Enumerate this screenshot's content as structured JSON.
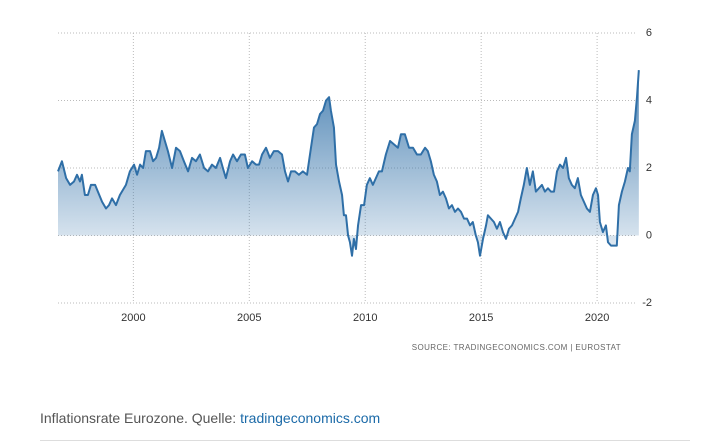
{
  "chart_data": {
    "type": "area",
    "source": "SOURCE: TRADINGECONOMICS.COM | EUROSTAT",
    "xlim": [
      1996.75,
      2021.85
    ],
    "xticks": [
      2000,
      2005,
      2010,
      2015,
      2020
    ],
    "ylim": [
      -2,
      6
    ],
    "yticks": [
      -2,
      0,
      2,
      4,
      6
    ],
    "grid": true,
    "series": [
      {
        "color": "#2f6fa7",
        "x": [
          1996.75,
          1996.92,
          1997.1,
          1997.27,
          1997.44,
          1997.57,
          1997.7,
          1997.78,
          1997.91,
          1998.04,
          1998.17,
          1998.35,
          1998.47,
          1998.65,
          1998.82,
          1998.95,
          1999.08,
          1999.25,
          1999.42,
          1999.68,
          1999.85,
          2000.03,
          2000.16,
          2000.29,
          2000.42,
          2000.54,
          2000.72,
          2000.85,
          2000.98,
          2001.11,
          2001.23,
          2001.36,
          2001.49,
          2001.67,
          2001.84,
          2002.01,
          2002.18,
          2002.36,
          2002.53,
          2002.7,
          2002.87,
          2003.05,
          2003.22,
          2003.39,
          2003.56,
          2003.74,
          2003.86,
          2003.99,
          2004.17,
          2004.3,
          2004.47,
          2004.64,
          2004.81,
          2004.94,
          2005.12,
          2005.29,
          2005.42,
          2005.55,
          2005.72,
          2005.89,
          2006.06,
          2006.24,
          2006.41,
          2006.54,
          2006.67,
          2006.8,
          2006.97,
          2007.14,
          2007.31,
          2007.49,
          2007.66,
          2007.79,
          2007.92,
          2008.05,
          2008.18,
          2008.31,
          2008.44,
          2008.52,
          2008.65,
          2008.74,
          2008.87,
          2009.0,
          2009.08,
          2009.17,
          2009.26,
          2009.34,
          2009.43,
          2009.51,
          2009.6,
          2009.69,
          2009.82,
          2009.95,
          2010.07,
          2010.2,
          2010.33,
          2010.46,
          2010.59,
          2010.72,
          2010.89,
          2011.07,
          2011.24,
          2011.41,
          2011.54,
          2011.71,
          2011.89,
          2012.06,
          2012.23,
          2012.4,
          2012.58,
          2012.7,
          2012.83,
          2012.96,
          2013.09,
          2013.22,
          2013.35,
          2013.48,
          2013.61,
          2013.74,
          2013.87,
          2014.0,
          2014.13,
          2014.26,
          2014.39,
          2014.52,
          2014.64,
          2014.77,
          2014.86,
          2014.95,
          2015.08,
          2015.21,
          2015.29,
          2015.42,
          2015.55,
          2015.68,
          2015.81,
          2015.94,
          2016.07,
          2016.2,
          2016.33,
          2016.46,
          2016.59,
          2016.71,
          2016.84,
          2016.97,
          2017.1,
          2017.23,
          2017.36,
          2017.49,
          2017.62,
          2017.75,
          2017.88,
          2018.01,
          2018.14,
          2018.27,
          2018.4,
          2018.53,
          2018.66,
          2018.78,
          2018.91,
          2019.04,
          2019.17,
          2019.3,
          2019.43,
          2019.56,
          2019.69,
          2019.82,
          2019.95,
          2020.04,
          2020.12,
          2020.25,
          2020.38,
          2020.47,
          2020.6,
          2020.72,
          2020.85,
          2020.94,
          2021.07,
          2021.2,
          2021.33,
          2021.41,
          2021.5,
          2021.63,
          2021.72,
          2021.8
        ],
        "values": [
          1.9,
          2.2,
          1.7,
          1.5,
          1.6,
          1.8,
          1.6,
          1.8,
          1.2,
          1.2,
          1.5,
          1.5,
          1.3,
          1.0,
          0.8,
          0.9,
          1.1,
          0.9,
          1.2,
          1.5,
          1.9,
          2.1,
          1.8,
          2.1,
          2.0,
          2.5,
          2.5,
          2.2,
          2.3,
          2.6,
          3.1,
          2.8,
          2.5,
          2.0,
          2.6,
          2.5,
          2.2,
          1.9,
          2.3,
          2.2,
          2.4,
          2.0,
          1.9,
          2.1,
          2.0,
          2.3,
          2.0,
          1.7,
          2.2,
          2.4,
          2.2,
          2.4,
          2.4,
          2.0,
          2.2,
          2.1,
          2.1,
          2.4,
          2.6,
          2.3,
          2.5,
          2.5,
          2.4,
          1.9,
          1.6,
          1.9,
          1.9,
          1.8,
          1.9,
          1.8,
          2.6,
          3.2,
          3.3,
          3.6,
          3.7,
          4.0,
          4.1,
          3.7,
          3.2,
          2.1,
          1.6,
          1.2,
          0.6,
          0.6,
          0.0,
          -0.2,
          -0.6,
          -0.1,
          -0.4,
          0.3,
          0.9,
          0.9,
          1.5,
          1.7,
          1.5,
          1.7,
          1.9,
          1.9,
          2.4,
          2.8,
          2.7,
          2.6,
          3.0,
          3.0,
          2.6,
          2.6,
          2.4,
          2.4,
          2.6,
          2.5,
          2.2,
          1.8,
          1.6,
          1.2,
          1.3,
          1.1,
          0.8,
          0.9,
          0.7,
          0.8,
          0.7,
          0.5,
          0.5,
          0.3,
          0.4,
          0.0,
          -0.2,
          -0.6,
          -0.1,
          0.3,
          0.6,
          0.5,
          0.4,
          0.2,
          0.4,
          0.1,
          -0.1,
          0.2,
          0.3,
          0.5,
          0.7,
          1.1,
          1.5,
          2.0,
          1.5,
          1.9,
          1.3,
          1.4,
          1.5,
          1.3,
          1.4,
          1.3,
          1.3,
          1.9,
          2.1,
          2.0,
          2.3,
          1.7,
          1.5,
          1.4,
          1.7,
          1.2,
          1.0,
          0.8,
          0.7,
          1.2,
          1.4,
          1.2,
          0.4,
          0.1,
          0.3,
          -0.2,
          -0.3,
          -0.3,
          -0.3,
          0.9,
          1.3,
          1.6,
          2.0,
          1.9,
          3.0,
          3.4,
          4.1,
          4.9
        ]
      }
    ]
  },
  "caption": {
    "text": "Inflationsrate Eurozone. Quelle:",
    "link": "tradingeconomics.com"
  }
}
